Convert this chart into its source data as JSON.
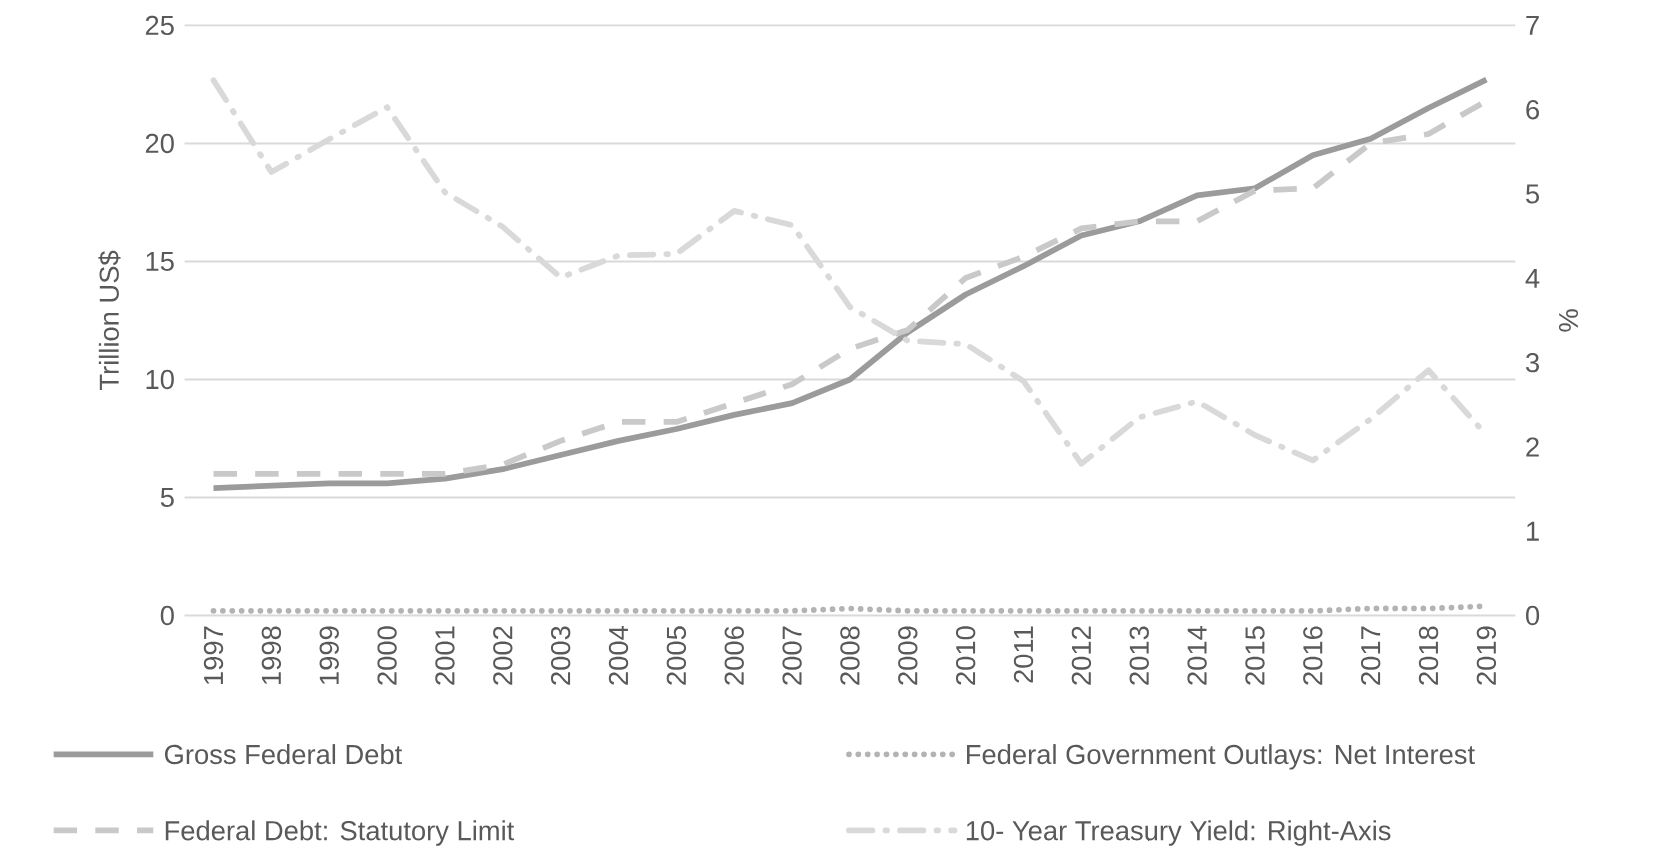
{
  "chart_data": {
    "type": "line",
    "categories": [
      "1997",
      "1998",
      "1999",
      "2000",
      "2001",
      "2002",
      "2003",
      "2004",
      "2005",
      "2006",
      "2007",
      "2008",
      "2009",
      "2010",
      "2011",
      "2012",
      "2013",
      "2014",
      "2015",
      "2016",
      "2017",
      "2018",
      "2019"
    ],
    "ylabel": "Trillion US$",
    "y2label": "%",
    "ylim": [
      0,
      25
    ],
    "yticks": [
      0,
      5,
      10,
      15,
      20,
      25
    ],
    "y2lim": [
      0,
      7
    ],
    "y2ticks": [
      0,
      1,
      2,
      3,
      4,
      5,
      6,
      7
    ],
    "grid": "y",
    "legend": "bottom",
    "series": [
      {
        "name": "Gross Federal Debt",
        "color": "#9b9b9b",
        "line_style": "solid",
        "values": [
          5.4,
          5.5,
          5.6,
          5.6,
          5.8,
          6.2,
          6.8,
          7.4,
          7.9,
          8.5,
          9.0,
          10.0,
          12.0,
          13.6,
          14.8,
          16.1,
          16.7,
          17.8,
          18.1,
          19.5,
          20.2,
          21.5,
          22.7
        ]
      },
      {
        "name": "Federal Government Outlays: Net Interest",
        "color": "#b3b3b3",
        "line_style": "dotted",
        "values": [
          0.2,
          0.2,
          0.2,
          0.2,
          0.2,
          0.2,
          0.2,
          0.2,
          0.2,
          0.2,
          0.2,
          0.3,
          0.2,
          0.2,
          0.2,
          0.2,
          0.2,
          0.2,
          0.2,
          0.2,
          0.3,
          0.3,
          0.4
        ]
      },
      {
        "name": "Federal Debt: Statutory Limit",
        "color": "#c9c9c9",
        "line_style": "dashed",
        "values": [
          6.0,
          6.0,
          6.0,
          6.0,
          6.0,
          6.4,
          7.4,
          8.2,
          8.2,
          9.0,
          9.8,
          11.3,
          12.1,
          14.3,
          15.2,
          16.4,
          16.7,
          16.7,
          18.0,
          18.1,
          20.0,
          20.4,
          21.8
        ]
      },
      {
        "name": "10- Year Treasury Yield: Right-Axis",
        "color": "#d9d9d9",
        "line_style": "dashdot",
        "axis": "y2",
        "values": [
          6.35,
          5.26,
          5.65,
          6.03,
          5.02,
          4.61,
          4.01,
          4.27,
          4.29,
          4.8,
          4.63,
          3.66,
          3.26,
          3.22,
          2.78,
          1.8,
          2.35,
          2.54,
          2.14,
          1.84,
          2.33,
          2.91,
          2.14
        ]
      }
    ]
  }
}
